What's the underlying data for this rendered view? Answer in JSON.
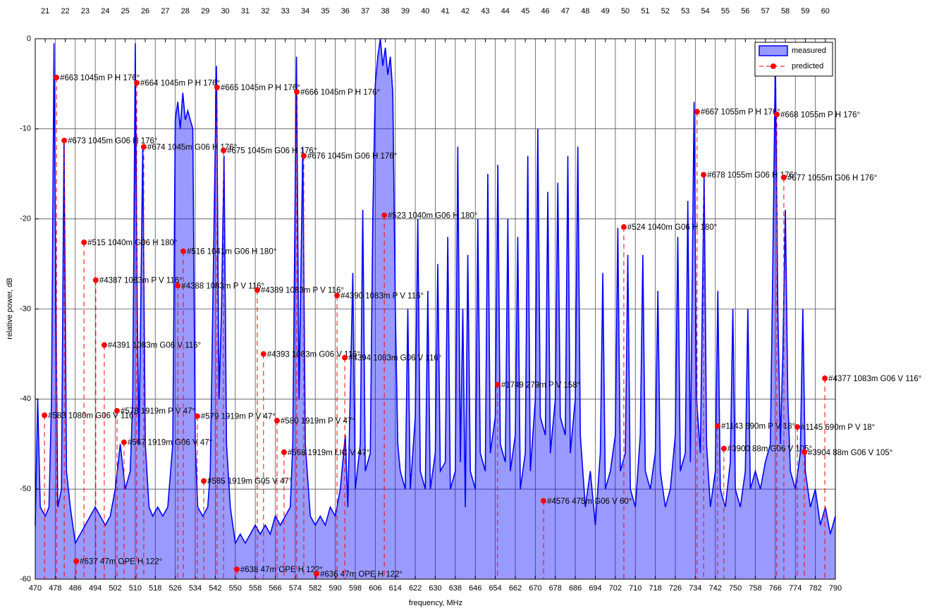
{
  "chart_data": {
    "type": "combo",
    "x_label": "frequency, MHz",
    "y_label": "relative power, dB",
    "xlim": [
      470,
      790
    ],
    "ylim": [
      -60,
      0
    ],
    "xticks": [
      470,
      478,
      486,
      494,
      502,
      510,
      518,
      526,
      534,
      542,
      550,
      558,
      566,
      574,
      582,
      590,
      598,
      606,
      614,
      622,
      630,
      638,
      646,
      654,
      662,
      670,
      678,
      686,
      694,
      702,
      710,
      718,
      726,
      734,
      742,
      750,
      758,
      766,
      774,
      782,
      790
    ],
    "yticks": [
      -60,
      -50,
      -40,
      -30,
      -20,
      -10,
      0
    ],
    "grid": true,
    "legend": "upper right",
    "channels": {
      "numbers": [
        21,
        22,
        23,
        24,
        25,
        26,
        27,
        28,
        29,
        30,
        31,
        32,
        33,
        34,
        35,
        36,
        37,
        38,
        39,
        40,
        41,
        42,
        43,
        44,
        45,
        46,
        47,
        48,
        49,
        50,
        51,
        52,
        53,
        54,
        55,
        56,
        57,
        58,
        59,
        60
      ],
      "centers": [
        474,
        482,
        490,
        498,
        506,
        514,
        522,
        530,
        538,
        546,
        554,
        562,
        570,
        578,
        586,
        594,
        602,
        610,
        618,
        626,
        634,
        642,
        650,
        658,
        666,
        674,
        682,
        690,
        698,
        706,
        714,
        722,
        730,
        738,
        746,
        754,
        762,
        770,
        778,
        786
      ]
    },
    "series": [
      {
        "name": "measured",
        "type": "area",
        "color": "#0000ff",
        "x": [
          470,
          471,
          472,
          474,
          475.5,
          476.5,
          477.5,
          478.3,
          479,
          480.5,
          481.5,
          482.5,
          484,
          486,
          488,
          490,
          492,
          494,
          496,
          498,
          500,
          502,
          504,
          506,
          508,
          509,
          510,
          510.8,
          511.5,
          513,
          514,
          515.5,
          517,
          519,
          521,
          523,
          525,
          526,
          527,
          528,
          529,
          530,
          531,
          532,
          533,
          534,
          535,
          537,
          539,
          540,
          541,
          542.5,
          543.5,
          544.5,
          545.5,
          546.5,
          548,
          550,
          552,
          554,
          556,
          558,
          560,
          562,
          564,
          566,
          568,
          570,
          572,
          573,
          574.5,
          575.5,
          577,
          578,
          580,
          582,
          584,
          586,
          588,
          590,
          592,
          594,
          595,
          597,
          598,
          600,
          601,
          602,
          604,
          605,
          606,
          607,
          608,
          609,
          610,
          611,
          612,
          613,
          614,
          615,
          616,
          618,
          619,
          620,
          622,
          623,
          624,
          626,
          627,
          628,
          630,
          631,
          632,
          634,
          635,
          636,
          638,
          639,
          640,
          641,
          642,
          643,
          644,
          646,
          647,
          648,
          650,
          651,
          652,
          654,
          655,
          656,
          658,
          659,
          660,
          662,
          663,
          664,
          666,
          667,
          668,
          670,
          671,
          672,
          674,
          675,
          676,
          678,
          679,
          680,
          682,
          683,
          684,
          686,
          687,
          688,
          690,
          692,
          694,
          696,
          697,
          698,
          700,
          702,
          703,
          704,
          706,
          707,
          708,
          710,
          712,
          713,
          714,
          716,
          718,
          719,
          720,
          722,
          724,
          726,
          727,
          728,
          730,
          731,
          732,
          733.5,
          734.5,
          736,
          737.5,
          738.5,
          740,
          742,
          743,
          744,
          746,
          748,
          749,
          750,
          752,
          754,
          755,
          756,
          758,
          760,
          762,
          764,
          765,
          766,
          767,
          768,
          769,
          770,
          771,
          772,
          774,
          776,
          777,
          778,
          780,
          782,
          784,
          786,
          788,
          790
        ],
        "values": [
          -54,
          -40,
          -52,
          -53,
          -52,
          -40,
          -0.5,
          -30,
          -52,
          -50,
          -11,
          -48,
          -52,
          -56,
          -55,
          -54,
          -53,
          -52,
          -53,
          -54,
          -53,
          -50,
          -45,
          -50,
          -48,
          -40,
          -0.5,
          -30,
          -45,
          -12,
          -45,
          -52,
          -53,
          -52,
          -53,
          -52,
          -45,
          -9,
          -7,
          -10,
          -6,
          -9,
          -8,
          -9,
          -10,
          -45,
          -52,
          -53,
          -52,
          -48,
          -30,
          -3,
          -40,
          -30,
          -13,
          -45,
          -52,
          -56,
          -55,
          -56,
          -55,
          -54,
          -55,
          -54,
          -55,
          -53,
          -54,
          -53,
          -52,
          -45,
          -2,
          -40,
          -12,
          -45,
          -53,
          -54,
          -53,
          -54,
          -52,
          -53,
          -50,
          -44,
          -52,
          -26,
          -50,
          -45,
          -19,
          -48,
          -46,
          -20,
          -5,
          -2,
          0,
          -3,
          -1,
          -4,
          -2,
          -6,
          -30,
          -45,
          -48,
          -50,
          -30,
          -50,
          -42,
          -20,
          -48,
          -50,
          -28,
          -50,
          -46,
          -25,
          -48,
          -47,
          -22,
          -50,
          -48,
          -12,
          -47,
          -30,
          -52,
          -24,
          -48,
          -50,
          -20,
          -46,
          -48,
          -15,
          -46,
          -42,
          -14,
          -45,
          -47,
          -20,
          -48,
          -44,
          -22,
          -50,
          -46,
          -13,
          -48,
          -40,
          -10,
          -42,
          -44,
          -17,
          -46,
          -40,
          -16,
          -42,
          -44,
          -13,
          -46,
          -40,
          -12,
          -44,
          -52,
          -48,
          -54,
          -46,
          -26,
          -50,
          -48,
          -44,
          -21,
          -48,
          -46,
          -24,
          -50,
          -52,
          -44,
          -24,
          -48,
          -50,
          -46,
          -28,
          -48,
          -52,
          -50,
          -44,
          -22,
          -48,
          -46,
          -18,
          -47,
          -7,
          -40,
          -46,
          -15,
          -45,
          -52,
          -48,
          -28,
          -50,
          -52,
          -47,
          -30,
          -50,
          -52,
          -48,
          -30,
          -50,
          -48,
          -50,
          -47,
          -45,
          -25,
          -2,
          -30,
          -45,
          -35,
          -19,
          -40,
          -48,
          -50,
          -46,
          -30,
          -48,
          -52,
          -50,
          -54,
          -52,
          -55,
          -53
        ]
      },
      {
        "name": "predicted",
        "type": "scatter",
        "color": "#ff0000",
        "x": [
          478.5,
          510.6,
          542.7,
          574.6,
          481.6,
          513.4,
          545.3,
          577.4,
          734.7,
          766.6,
          737.3,
          769.4,
          609.6,
          705.4,
          489.5,
          529.2,
          494.2,
          527.0,
          558.8,
          590.7,
          497.6,
          561.3,
          593.8,
          785.8,
          473.7,
          534.8,
          566.7,
          502.7,
          505.5,
          569.5,
          537.4,
          742.9,
          774.8,
          745.4,
          777.6,
          486.4,
          550.6,
          582.5,
          673.3,
          654.9
        ],
        "values": [
          -4.3,
          -4.9,
          -5.4,
          -5.9,
          -11.3,
          -12.0,
          -12.4,
          -13.0,
          -8.1,
          -8.4,
          -15.1,
          -15.4,
          -19.6,
          -20.9,
          -22.6,
          -23.6,
          -26.8,
          -27.4,
          -27.9,
          -28.5,
          -34.0,
          -35.0,
          -35.4,
          -37.7,
          -41.8,
          -41.9,
          -42.4,
          -41.3,
          -44.8,
          -45.9,
          -49.1,
          -43.0,
          -43.1,
          -45.5,
          -45.9,
          -58.0,
          -58.9,
          -59.4,
          -51.3,
          -38.4
        ],
        "labels": [
          "#663 1045m P H 176°",
          "#664 1045m P H 176°",
          "#665 1045m P H 176°",
          "#666 1045m P H 176°",
          "#673 1045m G06 H 176°",
          "#674 1045m G06 H 176°",
          "#675 1045m G06 H 176°",
          "#676 1045m G06 H 176°",
          "#667 1055m P H 176°",
          "#668 1055m P H 176°",
          "#678 1055m G06 H 176°",
          "#677 1055m G06 H 176°",
          "#523 1040m G06 H 180°",
          "#524 1040m G06 H 180°",
          "#515 1040m G06 H 180°",
          "#516 1041m G06 H 180°",
          "#4387 1083m P V 116°",
          "#4388 1083m P V 116°",
          "#4389 1083m P V 116°",
          "#4390 1083m P V 116°",
          "#4391 1083m G06 V 116°",
          "#4393 1083m G06 V 116°",
          "#4394 1083m G06 V 116°",
          "#4377 1083m G06 V 116°",
          "#583 1080m G06 V 116°",
          "#579 1919m P V 47°",
          "#580 1919m P V 47°",
          "#578 1919m P V 47°",
          "#567 1919m G06 V 47°",
          "#568 1919m LIC V 47°",
          "#585 1919m G05 V 47°",
          "#1143 690m P V 18°",
          "#1145 690m P V 18°",
          "#3900 88m G06 V 105°",
          "#3904 88m G06 V 105°",
          "#637 47m OPE H 122°",
          "#638 47m OPE H 122°",
          "#636 47m OPE H 122°",
          "#4576 475m G06 V 60°",
          "#1749 279m P V 158°"
        ]
      }
    ]
  }
}
